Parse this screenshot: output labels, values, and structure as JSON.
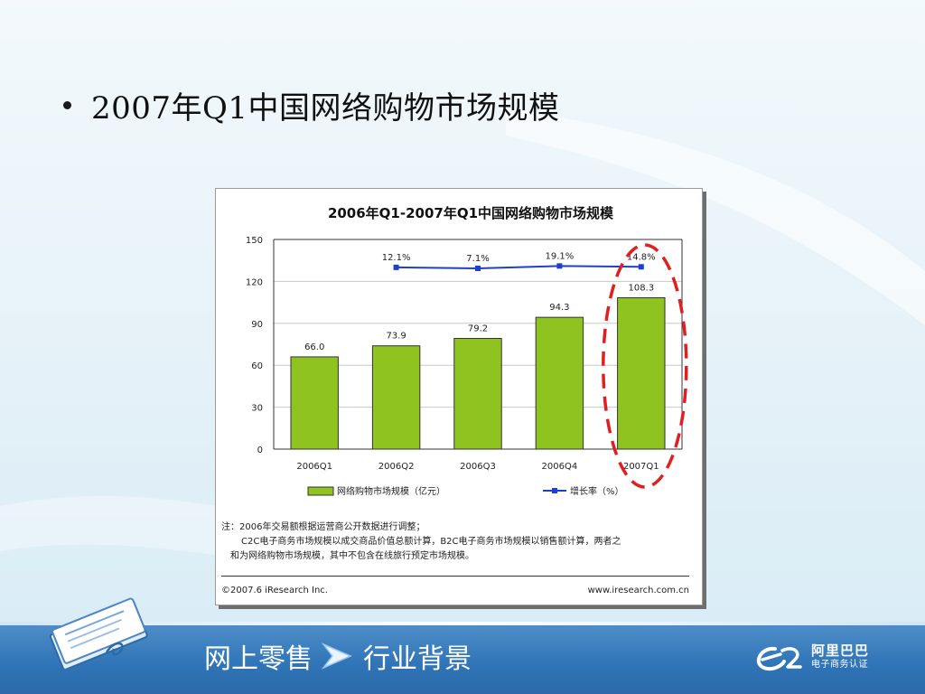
{
  "slide": {
    "title": "2007年Q1中国网络购物市场规模"
  },
  "chart_data": {
    "type": "bar",
    "title": "2006年Q1-2007年Q1中国网络购物市场规模",
    "categories": [
      "2006Q1",
      "2006Q2",
      "2006Q3",
      "2006Q4",
      "2007Q1"
    ],
    "series": [
      {
        "name": "网络购物市场规模（亿元）",
        "type": "bar",
        "values": [
          66.0,
          73.9,
          79.2,
          94.3,
          108.3
        ],
        "labels": [
          "66.0",
          "73.9",
          "79.2",
          "94.3",
          "108.3"
        ]
      },
      {
        "name": "增长率（%）",
        "type": "line",
        "values": [
          null,
          12.1,
          7.1,
          19.1,
          14.8
        ],
        "labels": [
          "",
          "12.1%",
          "7.1%",
          "19.1%",
          "14.8%"
        ]
      }
    ],
    "ylim": [
      0,
      150
    ],
    "yticks": [
      "0",
      "30",
      "60",
      "90",
      "120",
      "150"
    ],
    "grid": true,
    "legend": "bottom",
    "highlight": "2007Q1",
    "colors": {
      "bar": "#8fc31f",
      "bar_border": "#333333",
      "line": "#1f3fd0",
      "highlight": "#e02020"
    }
  },
  "notes": {
    "line1": "注：2006年交易额根据运营商公开数据进行调整；",
    "line2": "C2C电子商务市场规模以成交商品价值总额计算，B2C电子商务市场规模以销售额计算，两者之",
    "line3": "和为网络购物市场规模，其中不包含在线旅行预定市场规模。"
  },
  "source": {
    "copyright": "©2007.6 iResearch Inc.",
    "website": "www.iresearch.com.cn"
  },
  "footer": {
    "crumb1": "网上零售",
    "crumb2": "行业背景",
    "logo_line1": "阿里巴巴",
    "logo_line2": "电子商务认证",
    "logo_mark": "e2"
  },
  "icons": [
    "book-icon",
    "chevron-right-icon",
    "e-logo-icon"
  ]
}
